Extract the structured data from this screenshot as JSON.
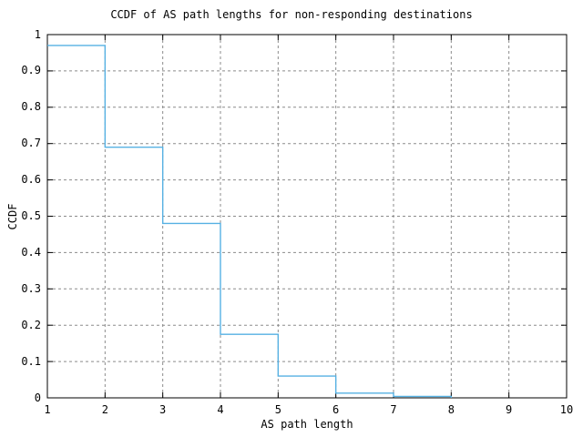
{
  "figure": {
    "background": "#ffffff"
  },
  "colors": {
    "axis": "#000000",
    "grid": "#8b8b8b",
    "text": "#000000",
    "line": "#56b1e3"
  },
  "chart_data": {
    "type": "line",
    "style": "steps-post",
    "title": "CCDF of AS path lengths for non-responding destinations",
    "xlabel": "AS path length",
    "ylabel": "CCDF",
    "xlim": [
      1,
      10
    ],
    "ylim": [
      0,
      1
    ],
    "grid": true,
    "legend": false,
    "xticks": [
      1,
      2,
      3,
      4,
      5,
      6,
      7,
      8,
      9,
      10
    ],
    "xtick_labels": [
      "1",
      "2",
      "3",
      "4",
      "5",
      "6",
      "7",
      "8",
      "9",
      "10"
    ],
    "yticks": [
      0,
      0.1,
      0.2,
      0.3,
      0.4,
      0.5,
      0.6,
      0.7,
      0.8,
      0.9,
      1
    ],
    "ytick_labels": [
      "0",
      "0.1",
      "0.2",
      "0.3",
      "0.4",
      "0.5",
      "0.6",
      "0.7",
      "0.8",
      "0.9",
      "1"
    ],
    "series": [
      {
        "name": "ccdf",
        "color": "#56b1e3",
        "x": [
          1,
          2,
          3,
          4,
          5,
          6,
          7,
          8
        ],
        "y": [
          0.97,
          0.69,
          0.48,
          0.175,
          0.06,
          0.013,
          0.004,
          0
        ]
      }
    ]
  }
}
